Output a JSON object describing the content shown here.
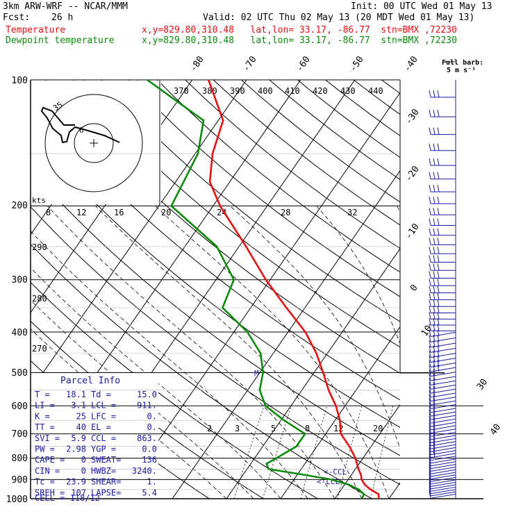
{
  "header": {
    "model": "3km ARW-WRF -- NCAR/MMM",
    "init": "Init: 00 UTC Wed 01 May 13",
    "fcst_label": "Fcst:",
    "fcst_hours": "26 h",
    "valid": "Valid: 02 UTC Thu 02 May 13 (20 MDT Wed 01 May 13)",
    "temp_label": "Temperature",
    "dew_label": "Dewpoint temperature",
    "temp_loc": "x,y=829.80,310.48   lat,lon= 33.17, -86.77  stn=BMX ,72230",
    "dew_loc": "x,y=829.80,310.48   lat,lon= 33.17, -86.77  stn=BMX ,72230"
  },
  "colors": {
    "temperature": "#e41010",
    "dewpoint": "#0a8a0a",
    "wind": "#1a1aa0",
    "hodograph": "#000000"
  },
  "pressure_labels": [
    "100",
    "200",
    "300",
    "400",
    "500",
    "600",
    "700",
    "800",
    "900",
    "1000"
  ],
  "isotherm_labels": [
    "-80",
    "-70",
    "-60",
    "-50",
    "-40",
    "-30",
    "-20",
    "-10",
    "0",
    "10",
    "30",
    "40"
  ],
  "theta_labels": [
    "370",
    "380",
    "390",
    "400",
    "410",
    "420",
    "430",
    "440"
  ],
  "theta_left_labels": [
    "290",
    "280",
    "270"
  ],
  "mixing_ratio_labels": [
    "2",
    "3",
    "5",
    "8",
    "12",
    "20"
  ],
  "hodograph": {
    "scale_labels": [
      "kts",
      "8",
      "12",
      "16",
      "20",
      "24",
      "28",
      "32"
    ],
    "ring_labels": [
      "35",
      "6"
    ]
  },
  "wind_scale": {
    "title": "Full barb:",
    "value": "5 m s⁻¹"
  },
  "ccl_labels": [
    "<-CCL",
    "<-LCL"
  ],
  "mark_m": "M",
  "parcel_info": {
    "title": "Parcel Info",
    "rows": [
      [
        "T  =",
        "18.1",
        "Td =",
        "15.0"
      ],
      [
        "LI =",
        "3.1",
        "LCL =",
        "911."
      ],
      [
        "K  =",
        "25",
        "LFC =",
        "0."
      ],
      [
        "TT =",
        "40",
        "EL  =",
        "0."
      ],
      [
        "SVI =",
        "5.9",
        "CCL =",
        "863."
      ],
      [
        "PW =",
        "2.98",
        "YGP =",
        "0.0"
      ],
      [
        "CAPE =",
        "0",
        "SWEAT=",
        "136"
      ],
      [
        "CIN =",
        "0",
        "HWBZ=",
        "3240."
      ],
      [
        "Tc =",
        "23.9",
        "SHEAR=",
        "1."
      ],
      [
        "SREH =",
        "107",
        "LAPSE=",
        "5.4"
      ]
    ],
    "cell": "CELL = 118/12"
  },
  "chart_data": {
    "type": "line",
    "chart_kind": "skew-T log-P sounding",
    "y_axis": "pressure (hPa)",
    "x_axis": "temperature (°C)",
    "ylim": [
      1000,
      100
    ],
    "series": [
      {
        "name": "Temperature",
        "color": "#e41010",
        "points": [
          {
            "p": 1000,
            "t": 18.1
          },
          {
            "p": 975,
            "t": 17.5
          },
          {
            "p": 950,
            "t": 15.4
          },
          {
            "p": 925,
            "t": 13.7
          },
          {
            "p": 900,
            "t": 12.5
          },
          {
            "p": 875,
            "t": 11.7
          },
          {
            "p": 850,
            "t": 10.6
          },
          {
            "p": 800,
            "t": 8.6
          },
          {
            "p": 750,
            "t": 6.0
          },
          {
            "p": 700,
            "t": 2.8
          },
          {
            "p": 650,
            "t": 0.9
          },
          {
            "p": 600,
            "t": -1.7
          },
          {
            "p": 550,
            "t": -5.1
          },
          {
            "p": 500,
            "t": -8.3
          },
          {
            "p": 450,
            "t": -12.0
          },
          {
            "p": 400,
            "t": -16.8
          },
          {
            "p": 350,
            "t": -23.4
          },
          {
            "p": 300,
            "t": -30.8
          },
          {
            "p": 250,
            "t": -38.7
          },
          {
            "p": 200,
            "t": -48.7
          },
          {
            "p": 175,
            "t": -53.7
          },
          {
            "p": 150,
            "t": -56.8
          },
          {
            "p": 125,
            "t": -59.1
          },
          {
            "p": 100,
            "t": -67.0
          }
        ]
      },
      {
        "name": "Dewpoint temperature",
        "color": "#0a8a0a",
        "points": [
          {
            "p": 1000,
            "t": 15.0
          },
          {
            "p": 975,
            "t": 14.8
          },
          {
            "p": 950,
            "t": 13.2
          },
          {
            "p": 925,
            "t": 10.7
          },
          {
            "p": 900,
            "t": 6.9
          },
          {
            "p": 875,
            "t": 0.8
          },
          {
            "p": 850,
            "t": -6.0
          },
          {
            "p": 825,
            "t": -7.1
          },
          {
            "p": 800,
            "t": -6.0
          },
          {
            "p": 750,
            "t": -3.8
          },
          {
            "p": 700,
            "t": -3.8
          },
          {
            "p": 650,
            "t": -9.4
          },
          {
            "p": 600,
            "t": -14.7
          },
          {
            "p": 550,
            "t": -17.8
          },
          {
            "p": 500,
            "t": -19.4
          },
          {
            "p": 450,
            "t": -22.3
          },
          {
            "p": 400,
            "t": -27.5
          },
          {
            "p": 350,
            "t": -35.2
          },
          {
            "p": 300,
            "t": -36.7
          },
          {
            "p": 250,
            "t": -44.1
          },
          {
            "p": 200,
            "t": -57.7
          },
          {
            "p": 150,
            "t": -59.5
          },
          {
            "p": 125,
            "t": -62.7
          },
          {
            "p": 100,
            "t": -78.3
          }
        ]
      }
    ]
  }
}
